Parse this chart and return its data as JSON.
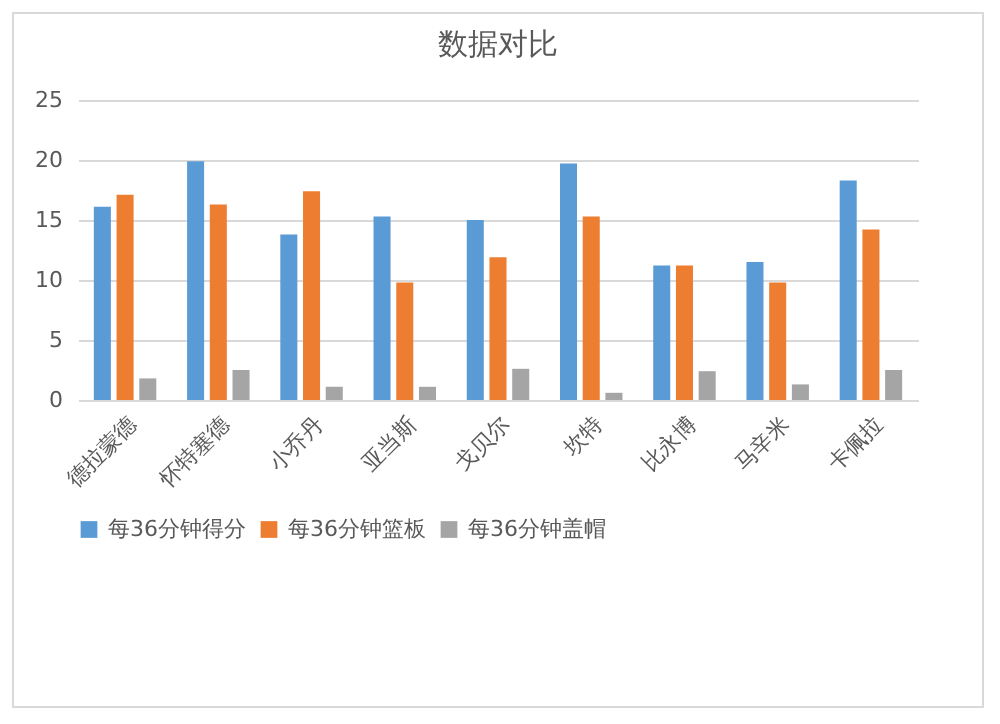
{
  "chart_data": {
    "type": "bar",
    "title": "数据对比",
    "categories": [
      "德拉蒙德",
      "怀特塞德",
      "小乔丹",
      "亚当斯",
      "戈贝尔",
      "坎特",
      "比永博",
      "马辛米",
      "卡佩拉"
    ],
    "series": [
      {
        "name": "每36分钟得分",
        "color": "#5b9bd5",
        "values": [
          16.1,
          19.9,
          13.8,
          15.3,
          15.0,
          19.7,
          11.2,
          11.5,
          18.3
        ]
      },
      {
        "name": "每36分钟篮板",
        "color": "#ed7d31",
        "values": [
          17.1,
          16.3,
          17.4,
          9.8,
          11.9,
          15.3,
          11.2,
          9.8,
          14.2
        ]
      },
      {
        "name": "每36分钟盖帽",
        "color": "#a5a5a5",
        "values": [
          1.8,
          2.5,
          1.1,
          1.1,
          2.6,
          0.6,
          2.4,
          1.3,
          2.5
        ]
      }
    ],
    "ylim": [
      0,
      25
    ],
    "yticks": [
      0,
      5,
      10,
      15,
      20,
      25
    ],
    "grid": "y",
    "legend": "bottom"
  }
}
